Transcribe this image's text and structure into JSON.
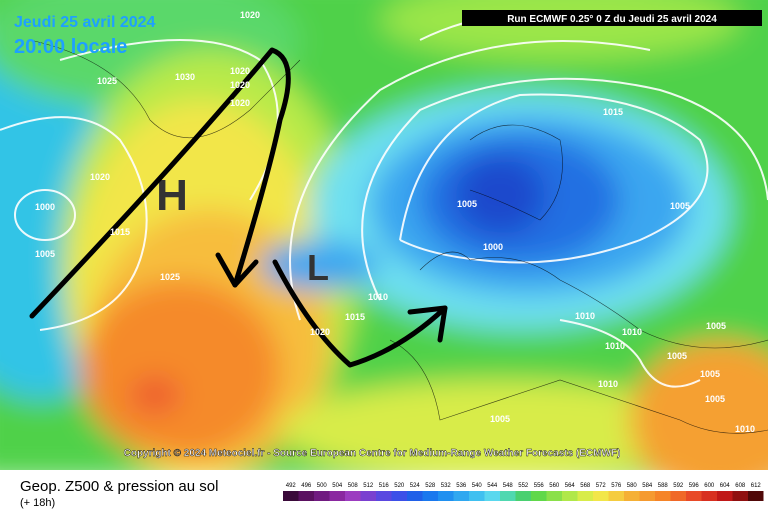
{
  "header": {
    "date": "Jeudi 25 avril 2024",
    "time": "20:00 locale",
    "run": "Run ECMWF 0.25° 0 Z du Jeudi 25 avril 2024"
  },
  "map": {
    "high": "H",
    "low": "L",
    "copyright": "Copyright © 2024 Meteociel.fr - Source European Centre for Medium-Range Weather Forecasts (ECMWF)",
    "isobar_labels": [
      "1020",
      "1025",
      "1030",
      "1020",
      "1020",
      "1020",
      "1020",
      "1000",
      "1015",
      "1005",
      "1025",
      "1005",
      "1000",
      "1015",
      "1005",
      "1010",
      "1015",
      "1020",
      "1010",
      "1010",
      "1010",
      "1005",
      "1005",
      "1005",
      "1010",
      "1005",
      "1010",
      "1005"
    ]
  },
  "footer": {
    "title": "Geop. Z500 & pression au sol",
    "lead": "(+ 18h)",
    "scale": [
      "492",
      "496",
      "500",
      "504",
      "508",
      "512",
      "516",
      "520",
      "524",
      "528",
      "532",
      "536",
      "540",
      "544",
      "548",
      "552",
      "556",
      "560",
      "564",
      "568",
      "572",
      "576",
      "580",
      "584",
      "588",
      "592",
      "596",
      "600",
      "604",
      "608",
      "612"
    ]
  }
}
